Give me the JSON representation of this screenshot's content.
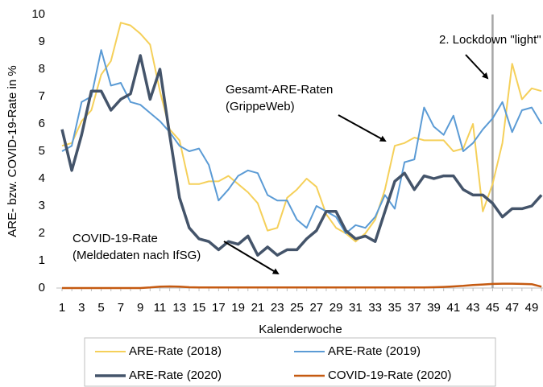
{
  "chart_data": {
    "type": "line",
    "xlabel": "Kalenderwoche",
    "ylabel": "ARE- bzw. COVID-19-Rate in %",
    "categories": [
      1,
      null,
      3,
      null,
      5,
      null,
      7,
      null,
      9,
      null,
      11,
      null,
      13,
      null,
      15,
      null,
      17,
      null,
      19,
      null,
      21,
      null,
      23,
      null,
      25,
      null,
      27,
      null,
      29,
      null,
      31,
      null,
      33,
      null,
      35,
      null,
      37,
      null,
      39,
      null,
      41,
      null,
      43,
      null,
      45,
      null,
      47,
      null,
      49,
      null
    ],
    "ylim": [
      0,
      10
    ],
    "yticks": [
      0,
      1,
      2,
      3,
      4,
      5,
      6,
      7,
      8,
      9,
      10
    ],
    "legend": "bottom",
    "series": [
      {
        "name": "ARE-Rate (2018)",
        "color": "#f5d05a",
        "width": 2,
        "values": [
          5.2,
          5.3,
          6.1,
          6.5,
          7.8,
          8.3,
          9.7,
          9.6,
          9.3,
          8.9,
          7.2,
          5.8,
          5.4,
          3.8,
          3.8,
          3.9,
          3.9,
          4.1,
          3.8,
          3.5,
          3.1,
          2.1,
          2.2,
          3.3,
          3.6,
          4.0,
          3.7,
          2.7,
          2.2,
          2.0,
          1.7,
          2.0,
          2.5,
          3.6,
          5.2,
          5.3,
          5.5,
          5.4,
          5.4,
          5.4,
          5.0,
          5.1,
          6.0,
          2.8,
          3.8,
          5.3,
          8.2,
          6.9,
          7.3,
          7.2
        ]
      },
      {
        "name": "ARE-Rate (2019)",
        "color": "#5b9bd5",
        "width": 2,
        "values": [
          5.0,
          5.2,
          6.8,
          7.0,
          8.7,
          7.4,
          7.5,
          6.8,
          6.7,
          6.4,
          6.1,
          5.7,
          5.2,
          5.0,
          5.1,
          4.5,
          3.2,
          3.6,
          4.1,
          4.3,
          4.2,
          3.4,
          3.2,
          3.2,
          2.5,
          2.2,
          3.0,
          2.8,
          2.6,
          2.0,
          2.3,
          2.2,
          2.6,
          3.4,
          2.9,
          4.6,
          4.7,
          6.6,
          5.9,
          5.6,
          6.3,
          5.0,
          5.3,
          5.8,
          6.2,
          6.8,
          5.7,
          6.5,
          6.6,
          6.0
        ]
      },
      {
        "name": "ARE-Rate (2020)",
        "color": "#44546a",
        "width": 3.5,
        "values": [
          5.8,
          4.3,
          5.6,
          7.2,
          7.2,
          6.5,
          6.9,
          7.1,
          8.5,
          6.9,
          8.0,
          5.6,
          3.3,
          2.2,
          1.8,
          1.7,
          1.4,
          1.7,
          1.6,
          1.9,
          1.2,
          1.5,
          1.2,
          1.4,
          1.4,
          1.8,
          2.1,
          2.8,
          2.8,
          2.1,
          1.8,
          1.9,
          1.7,
          2.8,
          3.9,
          4.2,
          3.6,
          4.1,
          4.0,
          4.1,
          4.1,
          3.6,
          3.4,
          3.4,
          3.1,
          2.6,
          2.9,
          2.9,
          3.0,
          3.4
        ]
      },
      {
        "name": "COVID-19-Rate (2020)",
        "color": "#c55a11",
        "width": 2.5,
        "values": [
          0,
          0,
          0,
          0,
          0,
          0,
          0,
          0,
          0,
          0.02,
          0.05,
          0.06,
          0.05,
          0.03,
          0.02,
          0.02,
          0.02,
          0.02,
          0.02,
          0.02,
          0.02,
          0.02,
          0.02,
          0.02,
          0.02,
          0.02,
          0.02,
          0.02,
          0.02,
          0.02,
          0.02,
          0.02,
          0.02,
          0.02,
          0.02,
          0.02,
          0.02,
          0.02,
          0.03,
          0.04,
          0.06,
          0.08,
          0.11,
          0.13,
          0.15,
          0.16,
          0.16,
          0.15,
          0.14,
          0.05
        ]
      }
    ],
    "vline": {
      "x": 45,
      "color": "#a6a6a6"
    },
    "annotations": [
      {
        "lines": [
          "2. Lockdown \"light\""
        ]
      },
      {
        "lines": [
          "Gesamt-ARE-Raten",
          "(GrippeWeb)"
        ]
      },
      {
        "lines": [
          "COVID-19-Rate",
          "(Meldedaten nach IfSG)"
        ]
      }
    ]
  }
}
